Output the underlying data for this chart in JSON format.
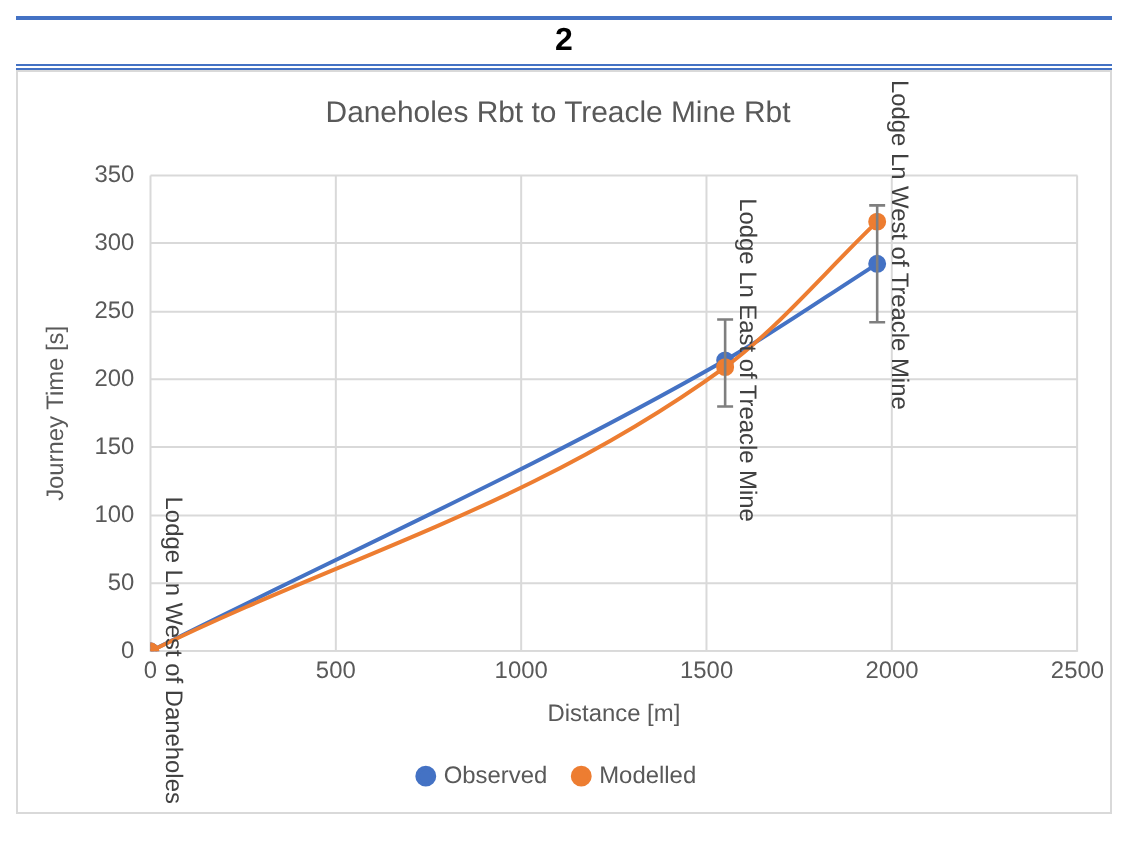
{
  "chart_data": {
    "type": "line",
    "title": "Daneholes Rbt to Treacle Mine Rbt",
    "xlabel": "Distance [m]",
    "ylabel": "Journey Time [s]",
    "x": [
      0,
      1550,
      1960
    ],
    "series": [
      {
        "name": "Observed",
        "color": "#4472c4",
        "values": [
          0,
          214,
          285
        ],
        "errors": [
          null,
          [
            180,
            244
          ],
          [
            242,
            328
          ]
        ]
      },
      {
        "name": "Modelled",
        "color": "#ed7d31",
        "values": [
          0,
          209,
          316
        ]
      }
    ],
    "xlim": [
      0,
      2500
    ],
    "xticks": [
      0,
      500,
      1000,
      1500,
      2000,
      2500
    ],
    "ylim": [
      0,
      350
    ],
    "yticks": [
      0,
      50,
      100,
      150,
      200,
      250,
      300,
      350
    ],
    "grid": true,
    "legend": "bottom",
    "marker": "circle",
    "line_style": "solid",
    "annotations": [
      "2",
      {
        "text": "Lodge Ln West of Daneholes",
        "x": 0,
        "y": 0
      },
      {
        "text": "Lodge Ln East of Treacle Mine",
        "x": 1550,
        "y": 214
      },
      {
        "text": "Lodge Ln West of Treacle Mine",
        "x": 1960,
        "y": 316
      }
    ]
  }
}
